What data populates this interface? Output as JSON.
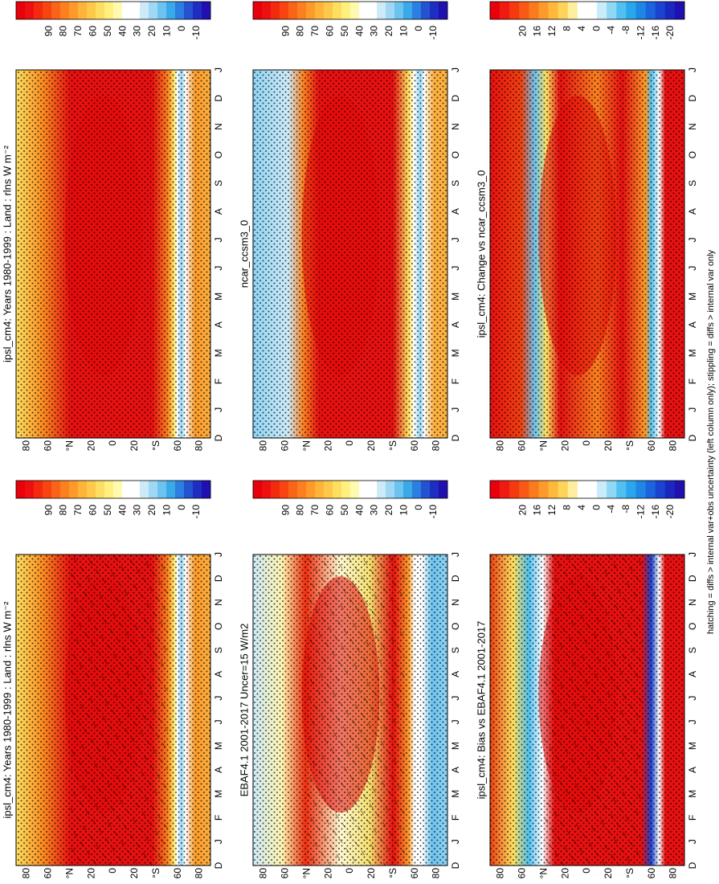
{
  "panels": [
    {
      "title": "ipsl_cm4: Years 1980-1999 : Land : rlns W m⁻²",
      "lat_labels": [
        "80",
        "60",
        "°N",
        "20",
        "0",
        "20",
        "°S",
        "60",
        "80"
      ],
      "months": [
        "D",
        "J",
        "F",
        "M",
        "A",
        "M",
        "J",
        "J",
        "A",
        "S",
        "O",
        "N",
        "D",
        "J"
      ],
      "colorbar": {
        "labels": [
          "90",
          "80",
          "70",
          "60",
          "50",
          "40",
          "30",
          "20",
          "10",
          "0",
          "-10"
        ],
        "colors": [
          "#e8000b",
          "#ee1010",
          "#f42a0f",
          "#f8450f",
          "#fa6418",
          "#fc8020",
          "#fd9a2a",
          "#feb33a",
          "#fec84a",
          "#fede60",
          "#fff080",
          "#fffab0",
          "#ffffff",
          "#ffffff",
          "#cdeaf8",
          "#9fd8f5",
          "#6cc3f0",
          "#3aa9e8",
          "#2b7fe0",
          "#2452d0",
          "#1e2ec0",
          "#2010b0"
        ]
      }
    },
    {
      "title": "EBAF4.1 2001-2017 Uncer=15 W/m2",
      "lat_labels": [
        "80",
        "60",
        "°N",
        "20",
        "0",
        "20",
        "°S",
        "60",
        "80"
      ],
      "months": [
        "D",
        "J",
        "F",
        "M",
        "A",
        "M",
        "J",
        "J",
        "A",
        "S",
        "O",
        "N",
        "D",
        "J"
      ],
      "colorbar": {
        "labels": [
          "90",
          "80",
          "70",
          "60",
          "50",
          "40",
          "30",
          "20",
          "10",
          "0",
          "-10"
        ],
        "colors": [
          "#e8000b",
          "#ee1010",
          "#f42a0f",
          "#f8450f",
          "#fa6418",
          "#fc8020",
          "#fd9a2a",
          "#feb33a",
          "#fec84a",
          "#fede60",
          "#fff080",
          "#fffab0",
          "#ffffff",
          "#ffffff",
          "#cdeaf8",
          "#9fd8f5",
          "#6cc3f0",
          "#3aa9e8",
          "#2b7fe0",
          "#2452d0",
          "#1e2ec0",
          "#2010b0"
        ]
      }
    },
    {
      "title": "ipsl_cm4: Bias vs EBAF4.1 2001-2017",
      "lat_labels": [
        "80",
        "60",
        "°N",
        "20",
        "0",
        "20",
        "°S",
        "60",
        "80"
      ],
      "months": [
        "D",
        "J",
        "F",
        "M",
        "A",
        "M",
        "J",
        "J",
        "A",
        "S",
        "O",
        "N",
        "D",
        "J"
      ],
      "colorbar": {
        "labels": [
          "20",
          "16",
          "12",
          "8",
          "4",
          "0",
          "-4",
          "-8",
          "-12",
          "-16",
          "-20"
        ],
        "colors": [
          "#e8000b",
          "#f01a10",
          "#f53a10",
          "#f85a15",
          "#fa7a1e",
          "#fc9a2a",
          "#feb83c",
          "#fed458",
          "#ffeea0",
          "#ffffff",
          "#ffffff",
          "#c8ecfa",
          "#8ed8f6",
          "#50c0f0",
          "#2aa6ec",
          "#1e86e4",
          "#1c64dc",
          "#1a44d0",
          "#1a28c0",
          "#2010b0"
        ]
      }
    },
    {
      "title": "ipsl_cm4: Years 1980-1999 : Land : rlns W m⁻²",
      "lat_labels": [
        "80",
        "60",
        "°N",
        "20",
        "0",
        "20",
        "°S",
        "60",
        "80"
      ],
      "months": [
        "D",
        "J",
        "F",
        "M",
        "A",
        "M",
        "J",
        "J",
        "A",
        "S",
        "O",
        "N",
        "D",
        "J"
      ],
      "colorbar": {
        "labels": [
          "90",
          "80",
          "70",
          "60",
          "50",
          "40",
          "30",
          "20",
          "10",
          "0",
          "-10"
        ],
        "colors": [
          "#e8000b",
          "#ee1010",
          "#f42a0f",
          "#f8450f",
          "#fa6418",
          "#fc8020",
          "#fd9a2a",
          "#feb33a",
          "#fec84a",
          "#fede60",
          "#fff080",
          "#fffab0",
          "#ffffff",
          "#ffffff",
          "#cdeaf8",
          "#9fd8f5",
          "#6cc3f0",
          "#3aa9e8",
          "#2b7fe0",
          "#2452d0",
          "#1e2ec0",
          "#2010b0"
        ]
      }
    },
    {
      "title": "ncar_ccsm3_0",
      "lat_labels": [
        "80",
        "60",
        "°N",
        "20",
        "0",
        "20",
        "°S",
        "60",
        "80"
      ],
      "months": [
        "D",
        "J",
        "F",
        "M",
        "A",
        "M",
        "J",
        "J",
        "A",
        "S",
        "O",
        "N",
        "D",
        "J"
      ],
      "colorbar": {
        "labels": [
          "90",
          "80",
          "70",
          "60",
          "50",
          "40",
          "30",
          "20",
          "10",
          "0",
          "-10"
        ],
        "colors": [
          "#e8000b",
          "#ee1010",
          "#f42a0f",
          "#f8450f",
          "#fa6418",
          "#fc8020",
          "#fd9a2a",
          "#feb33a",
          "#fec84a",
          "#fede60",
          "#fff080",
          "#fffab0",
          "#ffffff",
          "#ffffff",
          "#cdeaf8",
          "#9fd8f5",
          "#6cc3f0",
          "#3aa9e8",
          "#2b7fe0",
          "#2452d0",
          "#1e2ec0",
          "#2010b0"
        ]
      }
    },
    {
      "title": "ipsl_cm4: Change vs ncar_ccsm3_0",
      "lat_labels": [
        "80",
        "60",
        "°N",
        "20",
        "0",
        "20",
        "°S",
        "60",
        "80"
      ],
      "months": [
        "D",
        "J",
        "F",
        "M",
        "A",
        "M",
        "J",
        "J",
        "A",
        "S",
        "O",
        "N",
        "D",
        "J"
      ],
      "colorbar": {
        "labels": [
          "20",
          "16",
          "12",
          "8",
          "4",
          "0",
          "-4",
          "-8",
          "-12",
          "-16",
          "-20"
        ],
        "colors": [
          "#e8000b",
          "#f01a10",
          "#f53a10",
          "#f85a15",
          "#fa7a1e",
          "#fc9a2a",
          "#feb83c",
          "#fed458",
          "#ffeea0",
          "#ffffff",
          "#ffffff",
          "#c8ecfa",
          "#8ed8f6",
          "#50c0f0",
          "#2aa6ec",
          "#1e86e4",
          "#1c64dc",
          "#1a44d0",
          "#1a28c0",
          "#2010b0"
        ]
      }
    }
  ],
  "footer": "hatching = diffs > internal var+obs uncertainty (left column only); stippling = diffs > internal var only"
}
